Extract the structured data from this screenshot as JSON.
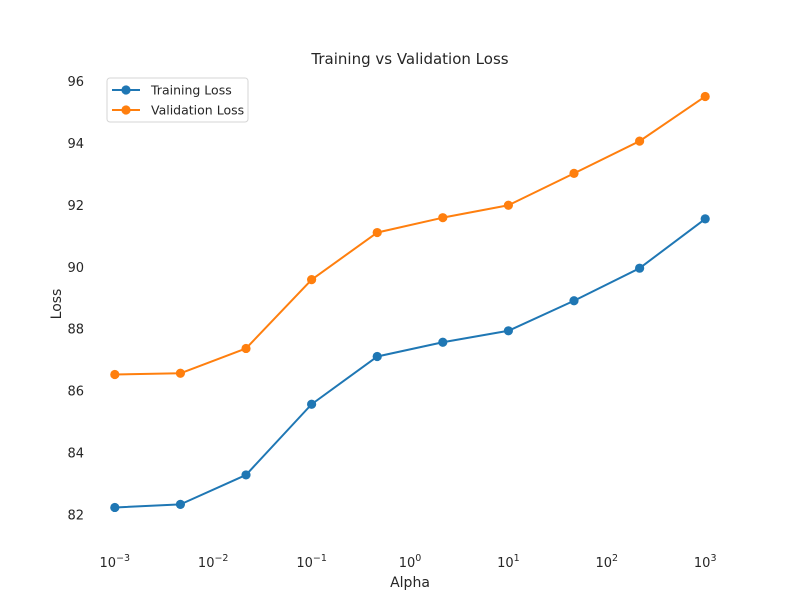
{
  "chart_data": {
    "type": "line",
    "title": "Training vs Validation Loss",
    "xlabel": "Alpha",
    "ylabel": "Loss",
    "x_scale": "log",
    "x": [
      0.001,
      0.004641588833612777,
      0.021544346900318832,
      0.1,
      0.46415888336127775,
      2.154434690031882,
      10,
      46.41588833612773,
      215.44346900318823,
      1000
    ],
    "x_ticks": [
      {
        "value": 0.001,
        "base": "10",
        "exp": "−3"
      },
      {
        "value": 0.01,
        "base": "10",
        "exp": "−2"
      },
      {
        "value": 0.1,
        "base": "10",
        "exp": "−1"
      },
      {
        "value": 1,
        "base": "10",
        "exp": "0"
      },
      {
        "value": 10,
        "base": "10",
        "exp": "1"
      },
      {
        "value": 100,
        "base": "10",
        "exp": "2"
      },
      {
        "value": 1000,
        "base": "10",
        "exp": "3"
      }
    ],
    "xlim": [
      0.000707,
      1414
    ],
    "y_ticks": [
      82,
      84,
      86,
      88,
      90,
      92,
      94,
      96
    ],
    "ylim": [
      81.2,
      96.3
    ],
    "grid": false,
    "legend_position": "upper-left",
    "series": [
      {
        "name": "Training Loss",
        "color": "#1f77b4",
        "values": [
          82.25,
          82.35,
          83.3,
          85.58,
          87.12,
          87.58,
          87.95,
          88.92,
          89.97,
          91.56
        ]
      },
      {
        "name": "Validation Loss",
        "color": "#ff7f0e",
        "values": [
          86.54,
          86.58,
          87.38,
          89.6,
          91.12,
          91.6,
          92.0,
          93.03,
          94.07,
          95.51
        ]
      }
    ]
  }
}
